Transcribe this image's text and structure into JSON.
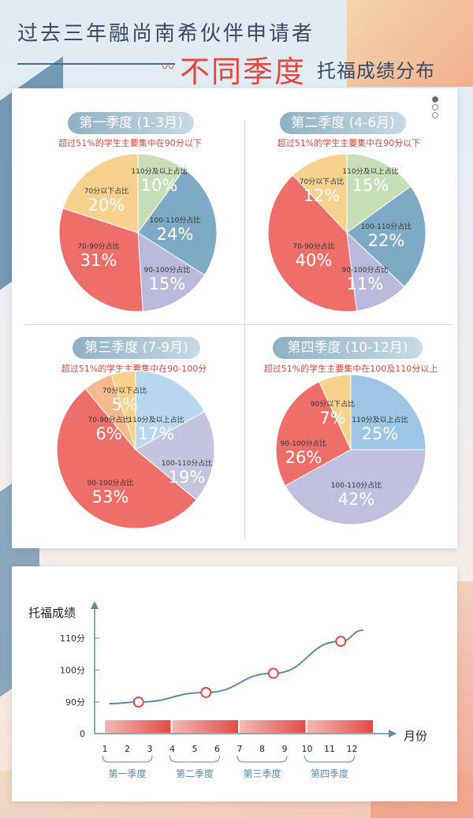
{
  "header": {
    "line1": "过去三年融尚南希伙伴申请者",
    "highlight": "不同季度",
    "line2": "托福成绩分布"
  },
  "quarters": [
    {
      "title": "第一季度 (1-3月)",
      "subtitle": "超过51%的学生主要集中在90分以下"
    },
    {
      "title": "第二季度 (4-6月)",
      "subtitle": "超过51%的学生主要集中在90分以下"
    },
    {
      "title": "第三季度 (7-9月)",
      "subtitle": "超过51%的学生主要集中在90-100分"
    },
    {
      "title": "第四季度 (10-12月)",
      "subtitle": "超过51%的学生主要集中在100及110分以上"
    }
  ],
  "chart_data": [
    {
      "type": "pie",
      "title": "第一季度 (1-3月)",
      "slices": [
        {
          "label": "110分及以上占比",
          "value": 10,
          "pct": "10%",
          "color": "#c7dfb7"
        },
        {
          "label": "100-110分占比",
          "value": 24,
          "pct": "24%",
          "color": "#7eaac6"
        },
        {
          "label": "90-100分占比",
          "value": 15,
          "pct": "15%",
          "color": "#b9b9dc"
        },
        {
          "label": "70-90分占比",
          "value": 31,
          "pct": "31%",
          "color": "#ee6f6a"
        },
        {
          "label": "70分以下占比",
          "value": 20,
          "pct": "20%",
          "color": "#f6d28e"
        }
      ]
    },
    {
      "type": "pie",
      "title": "第二季度 (4-6月)",
      "slices": [
        {
          "label": "110分及以上占比",
          "value": 15,
          "pct": "15%",
          "color": "#c7dfb7"
        },
        {
          "label": "100-110分占比",
          "value": 22,
          "pct": "22%",
          "color": "#7eaac6"
        },
        {
          "label": "90-100分占比",
          "value": 11,
          "pct": "11%",
          "color": "#b9b9dc"
        },
        {
          "label": "70-90分占比",
          "value": 40,
          "pct": "40%",
          "color": "#ee6f6a"
        },
        {
          "label": "70分以下占比",
          "value": 12,
          "pct": "12%",
          "color": "#f6d28e"
        }
      ]
    },
    {
      "type": "pie",
      "title": "第三季度 (7-9月)",
      "slices": [
        {
          "label": "110分及以上占比",
          "value": 17,
          "pct": "17%",
          "color": "#b7d8ee"
        },
        {
          "label": "100-110分占比",
          "value": 19,
          "pct": "19%",
          "color": "#c5c5e0"
        },
        {
          "label": "90-100分占比",
          "value": 53,
          "pct": "53%",
          "color": "#ee6f6a"
        },
        {
          "label": "70-90分占比",
          "value": 6,
          "pct": "6%",
          "color": "#f4b98c"
        },
        {
          "label": "70分以下占比",
          "value": 5,
          "pct": "5%",
          "color": "#f6d28e"
        }
      ]
    },
    {
      "type": "pie",
      "title": "第四季度 (10-12月)",
      "slices": [
        {
          "label": "110分及以上占比",
          "value": 25,
          "pct": "25%",
          "color": "#9cc6e3"
        },
        {
          "label": "100-110分占比",
          "value": 42,
          "pct": "42%",
          "color": "#bfbfe0"
        },
        {
          "label": "90-100分占比",
          "value": 26,
          "pct": "26%",
          "color": "#ee6f6a"
        },
        {
          "label": "90分以下占比",
          "value": 7,
          "pct": "7%",
          "color": "#f6d28e"
        }
      ]
    },
    {
      "type": "line",
      "ylabel": "托福成绩",
      "xlabel": "月份",
      "x": [
        1,
        2,
        3,
        4,
        5,
        6,
        7,
        8,
        9,
        10,
        11,
        12
      ],
      "yticks": [
        "0",
        "90分",
        "100分",
        "110分"
      ],
      "points": [
        {
          "x": 2.5,
          "y": 90
        },
        {
          "x": 5.5,
          "y": 93
        },
        {
          "x": 8.5,
          "y": 99
        },
        {
          "x": 11.5,
          "y": 109
        }
      ],
      "quarter_labels": [
        "第一季度",
        "第二季度",
        "第三季度",
        "第四季度"
      ]
    }
  ],
  "colors": {
    "accent": "#e4473f",
    "navy": "#3a4a66",
    "axis": "#5f8aa8"
  }
}
